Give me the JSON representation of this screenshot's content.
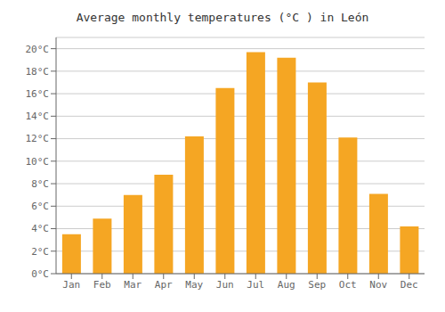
{
  "chart_data": {
    "type": "bar",
    "title": "Average monthly temperatures (°C ) in León",
    "categories": [
      "Jan",
      "Feb",
      "Mar",
      "Apr",
      "May",
      "Jun",
      "Jul",
      "Aug",
      "Sep",
      "Oct",
      "Nov",
      "Dec"
    ],
    "values": [
      3.5,
      4.9,
      7.0,
      8.8,
      12.2,
      16.5,
      19.7,
      19.2,
      17.0,
      12.1,
      7.1,
      4.2
    ],
    "color": "#F5A623",
    "ylim": [
      0,
      21
    ],
    "yticks": [
      {
        "value": 0,
        "label": "0°C"
      },
      {
        "value": 2,
        "label": "2°C"
      },
      {
        "value": 4,
        "label": "4°C"
      },
      {
        "value": 6,
        "label": "6°C"
      },
      {
        "value": 8,
        "label": "8°C"
      },
      {
        "value": 10,
        "label": "10°C"
      },
      {
        "value": 12,
        "label": "12°C"
      },
      {
        "value": 14,
        "label": "14°C"
      },
      {
        "value": 16,
        "label": "16°C"
      },
      {
        "value": 18,
        "label": "18°C"
      },
      {
        "value": 20,
        "label": "20°C"
      }
    ],
    "grid": true
  }
}
